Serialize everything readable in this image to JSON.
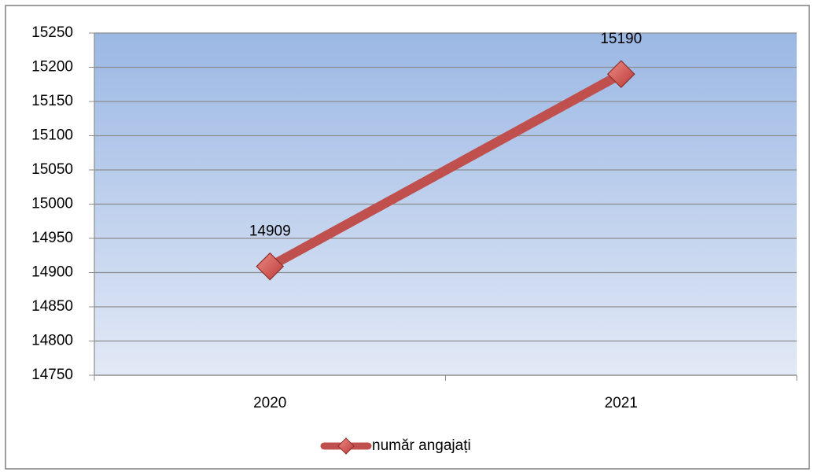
{
  "chart_data": {
    "type": "line",
    "categories": [
      "2020",
      "2021"
    ],
    "series": [
      {
        "name": "număr angajați",
        "color": "#c0504d",
        "values": [
          14909,
          15190
        ]
      }
    ],
    "ylim": [
      14750,
      15250
    ],
    "yticks": [
      14750,
      14800,
      14850,
      14900,
      14950,
      15000,
      15050,
      15100,
      15150,
      15200,
      15250
    ],
    "grid": true,
    "legend": "bottom",
    "data_labels": true
  }
}
